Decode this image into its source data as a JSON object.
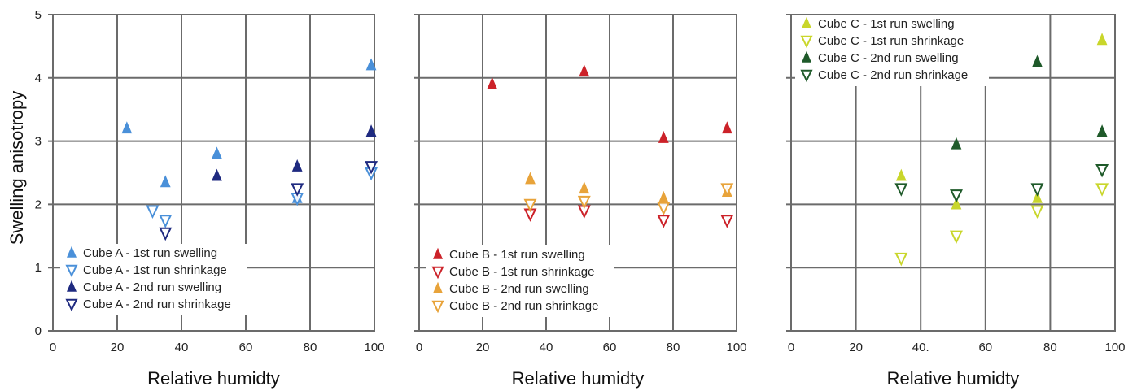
{
  "chart_data": [
    {
      "type": "scatter",
      "xlabel": "Relative humidty",
      "ylabel": "Swelling anisotropy",
      "xlim": [
        0,
        100
      ],
      "ylim": [
        0,
        5
      ],
      "xticks": [
        "0",
        "20",
        "40",
        "60",
        "80",
        "100"
      ],
      "yticks": [
        "0",
        "1",
        "2",
        "3",
        "4",
        "5"
      ],
      "grid": true,
      "legend_placement": "bottom-left",
      "series": [
        {
          "name": "Cube A - 1st run swelling",
          "marker": "up-filled",
          "color": "#4a90d9",
          "x": [
            23,
            35,
            51,
            76,
            99
          ],
          "y": [
            3.2,
            2.35,
            2.8,
            2.1,
            4.2
          ]
        },
        {
          "name": "Cube A - 1st run shrinkage",
          "marker": "down-open",
          "color": "#4a90d9",
          "x": [
            31,
            35,
            76,
            99
          ],
          "y": [
            1.9,
            1.75,
            2.1,
            2.5
          ]
        },
        {
          "name": "Cube A - 2nd run swelling",
          "marker": "up-filled",
          "color": "#1f2a80",
          "x": [
            51,
            76,
            99
          ],
          "y": [
            2.45,
            2.6,
            3.15
          ]
        },
        {
          "name": "Cube A - 2nd run shrinkage",
          "marker": "down-open",
          "color": "#1f2a80",
          "x": [
            35,
            76,
            99
          ],
          "y": [
            1.55,
            2.25,
            2.6
          ]
        }
      ]
    },
    {
      "type": "scatter",
      "xlabel": "Relative humidty",
      "ylabel": "",
      "xlim": [
        0,
        100
      ],
      "ylim": [
        0,
        5
      ],
      "xticks": [
        "0",
        "20",
        "40",
        "60",
        "80",
        "100"
      ],
      "yticks": [],
      "grid": true,
      "legend_placement": "bottom-left",
      "series": [
        {
          "name": "Cube B - 1st run swelling",
          "marker": "up-filled",
          "color": "#cc2229",
          "x": [
            23,
            52,
            77,
            97
          ],
          "y": [
            3.9,
            4.1,
            3.05,
            3.2
          ]
        },
        {
          "name": "Cube B - 1st run shrinkage",
          "marker": "down-open",
          "color": "#cc2229",
          "x": [
            35,
            52,
            77,
            97
          ],
          "y": [
            1.85,
            1.9,
            1.75,
            1.75
          ]
        },
        {
          "name": "Cube B - 2nd run swelling",
          "marker": "up-filled",
          "color": "#e8a33a",
          "x": [
            35,
            52,
            77,
            97
          ],
          "y": [
            2.4,
            2.25,
            2.1,
            2.2
          ]
        },
        {
          "name": "Cube B - 2nd run shrinkage",
          "marker": "down-open",
          "color": "#e8a33a",
          "x": [
            35,
            52,
            77,
            97
          ],
          "y": [
            2.0,
            2.05,
            1.95,
            2.25
          ]
        }
      ]
    },
    {
      "type": "scatter",
      "xlabel": "Relative humidty",
      "ylabel": "",
      "xlim": [
        0,
        100
      ],
      "ylim": [
        0,
        5
      ],
      "xticks": [
        "0",
        "20",
        "40.",
        "60",
        "80",
        "100"
      ],
      "yticks": [],
      "grid": true,
      "legend_placement": "top-left",
      "series": [
        {
          "name": "Cube C - 1st run swelling",
          "marker": "up-filled",
          "color": "#c9d62b",
          "x": [
            34,
            51,
            76,
            96
          ],
          "y": [
            2.45,
            2.0,
            2.1,
            4.6
          ]
        },
        {
          "name": "Cube C - 1st run shrinkage",
          "marker": "down-open",
          "color": "#c9d62b",
          "x": [
            34,
            51,
            76,
            96
          ],
          "y": [
            1.15,
            1.5,
            1.9,
            2.25
          ]
        },
        {
          "name": "Cube C - 2nd run swelling",
          "marker": "up-filled",
          "color": "#1f5a2a",
          "x": [
            51,
            76,
            96
          ],
          "y": [
            2.95,
            4.25,
            3.15
          ]
        },
        {
          "name": "Cube C - 2nd run shrinkage",
          "marker": "down-open",
          "color": "#1f5a2a",
          "x": [
            34,
            51,
            76,
            96
          ],
          "y": [
            2.25,
            2.15,
            2.25,
            2.55
          ]
        }
      ]
    }
  ]
}
